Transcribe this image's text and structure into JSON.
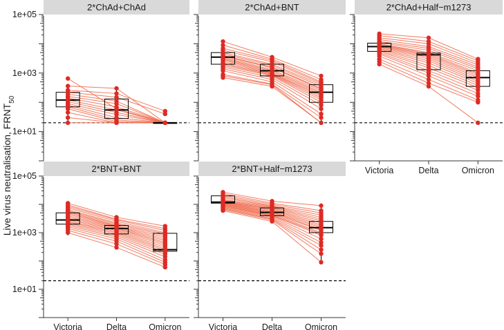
{
  "page": {
    "ylabel": "Live virus neutralisation, FRNT",
    "ylabel_sub": "50"
  },
  "colors": {
    "point": "#dd2b25",
    "line": "#ef6b4e",
    "strip_bg": "#d9d9d9",
    "box": "#000000"
  },
  "chart_data": [
    {
      "type": "box-strip-paired",
      "title": "2*ChAd+ChAd",
      "categories": [
        "Victoria",
        "Delta",
        "Omicron"
      ],
      "xlabel": "",
      "ylabel": "Live virus neutralisation, FRNT50",
      "yscale": "log10",
      "ylim": [
        1,
        100000
      ],
      "y_ticks": [
        "1e+01",
        "1e+03",
        "1e+05"
      ],
      "threshold": 20,
      "box": [
        {
          "q1": 70,
          "median": 120,
          "q3": 220,
          "whisker_low": 20,
          "whisker_high": 360
        },
        {
          "q1": 28,
          "median": 55,
          "q3": 130,
          "whisker_low": 20,
          "whisker_high": 300
        },
        {
          "q1": 20,
          "median": 20,
          "q3": 20,
          "whisker_low": 20,
          "whisker_high": 20
        }
      ],
      "subjects": [
        [
          650,
          60,
          20
        ],
        [
          360,
          300,
          20
        ],
        [
          260,
          200,
          50
        ],
        [
          220,
          150,
          40
        ],
        [
          190,
          110,
          20
        ],
        [
          160,
          90,
          20
        ],
        [
          140,
          70,
          20
        ],
        [
          120,
          55,
          20
        ],
        [
          105,
          45,
          20
        ],
        [
          90,
          38,
          20
        ],
        [
          80,
          30,
          20
        ],
        [
          70,
          25,
          20
        ],
        [
          60,
          22,
          20
        ],
        [
          45,
          20,
          20
        ],
        [
          30,
          20,
          20
        ],
        [
          20,
          20,
          20
        ]
      ]
    },
    {
      "type": "box-strip-paired",
      "title": "2*ChAd+BNT",
      "categories": [
        "Victoria",
        "Delta",
        "Omicron"
      ],
      "yscale": "log10",
      "ylim": [
        1,
        100000
      ],
      "y_ticks": [],
      "threshold": 20,
      "box": [
        {
          "q1": 2000,
          "median": 3500,
          "q3": 5000,
          "whisker_low": 800,
          "whisker_high": 11000
        },
        {
          "q1": 800,
          "median": 1200,
          "q3": 2000,
          "whisker_low": 400,
          "whisker_high": 3500
        },
        {
          "q1": 100,
          "median": 220,
          "q3": 400,
          "whisker_low": 20,
          "whisker_high": 800
        }
      ],
      "subjects": [
        [
          12000,
          3500,
          800
        ],
        [
          9000,
          3000,
          600
        ],
        [
          7000,
          2700,
          500
        ],
        [
          6000,
          2400,
          450
        ],
        [
          5000,
          2000,
          400
        ],
        [
          4500,
          1800,
          350
        ],
        [
          4000,
          1600,
          300
        ],
        [
          3800,
          1500,
          280
        ],
        [
          3500,
          1300,
          250
        ],
        [
          3200,
          1200,
          220
        ],
        [
          3000,
          1100,
          200
        ],
        [
          2800,
          1000,
          180
        ],
        [
          2500,
          950,
          160
        ],
        [
          2200,
          900,
          140
        ],
        [
          2000,
          850,
          120
        ],
        [
          1800,
          800,
          100
        ],
        [
          1600,
          700,
          80
        ],
        [
          1400,
          600,
          60
        ],
        [
          1200,
          500,
          40
        ],
        [
          900,
          420,
          30
        ],
        [
          800,
          400,
          20
        ],
        [
          700,
          350,
          20
        ]
      ]
    },
    {
      "type": "box-strip-paired",
      "title": "2*ChAd+Half−m1273",
      "categories": [
        "Victoria",
        "Delta",
        "Omicron"
      ],
      "yscale": "log10",
      "ylim": [
        1,
        100000
      ],
      "y_ticks": [],
      "threshold": 20,
      "box": [
        {
          "q1": 5500,
          "median": 8000,
          "q3": 10500,
          "whisker_low": 2000,
          "whisker_high": 19000
        },
        {
          "q1": 1300,
          "median": 4200,
          "q3": 4800,
          "whisker_low": 350,
          "whisker_high": 16000
        },
        {
          "q1": 350,
          "median": 700,
          "q3": 1200,
          "whisker_low": 100,
          "whisker_high": 3000
        }
      ],
      "subjects": [
        [
          22000,
          16000,
          3000
        ],
        [
          19000,
          12000,
          2600
        ],
        [
          16000,
          10000,
          2200
        ],
        [
          14000,
          8000,
          1900
        ],
        [
          12000,
          7000,
          1600
        ],
        [
          11000,
          6000,
          1400
        ],
        [
          10000,
          5000,
          1200
        ],
        [
          9500,
          4600,
          1000
        ],
        [
          9000,
          4200,
          900
        ],
        [
          8500,
          3800,
          800
        ],
        [
          8000,
          3400,
          700
        ],
        [
          7500,
          3000,
          600
        ],
        [
          7000,
          2600,
          520
        ],
        [
          6500,
          2200,
          450
        ],
        [
          6000,
          1800,
          380
        ],
        [
          5500,
          1500,
          320
        ],
        [
          5000,
          1200,
          260
        ],
        [
          4500,
          1000,
          200
        ],
        [
          3800,
          800,
          160
        ],
        [
          3000,
          600,
          120
        ],
        [
          2500,
          450,
          100
        ],
        [
          2000,
          350,
          20
        ]
      ]
    },
    {
      "type": "box-strip-paired",
      "title": "2*BNT+BNT",
      "categories": [
        "Victoria",
        "Delta",
        "Omicron"
      ],
      "yscale": "log10",
      "ylim": [
        1,
        100000
      ],
      "y_ticks": [
        "1e+01",
        "1e+03",
        "1e+05"
      ],
      "threshold": 20,
      "box": [
        {
          "q1": 2000,
          "median": 2800,
          "q3": 5000,
          "whisker_low": 800,
          "whisker_high": 10000
        },
        {
          "q1": 900,
          "median": 1400,
          "q3": 1800,
          "whisker_low": 300,
          "whisker_high": 3500
        },
        {
          "q1": 220,
          "median": 250,
          "q3": 950,
          "whisker_low": 60,
          "whisker_high": 1700
        }
      ],
      "subjects": [
        [
          11000,
          3500,
          1700
        ],
        [
          9500,
          3000,
          1400
        ],
        [
          8500,
          2800,
          1200
        ],
        [
          7500,
          2500,
          1000
        ],
        [
          6500,
          2200,
          900
        ],
        [
          6000,
          2000,
          800
        ],
        [
          5500,
          1800,
          700
        ],
        [
          5000,
          1700,
          600
        ],
        [
          4500,
          1600,
          520
        ],
        [
          4000,
          1500,
          450
        ],
        [
          3600,
          1400,
          400
        ],
        [
          3200,
          1300,
          350
        ],
        [
          2900,
          1200,
          300
        ],
        [
          2600,
          1100,
          260
        ],
        [
          2400,
          1000,
          230
        ],
        [
          2200,
          900,
          200
        ],
        [
          2000,
          800,
          170
        ],
        [
          1800,
          700,
          140
        ],
        [
          1600,
          600,
          110
        ],
        [
          1400,
          500,
          90
        ],
        [
          1200,
          400,
          75
        ],
        [
          1000,
          300,
          60
        ]
      ]
    },
    {
      "type": "box-strip-paired",
      "title": "2*BNT+Half−m1273",
      "categories": [
        "Victoria",
        "Delta",
        "Omicron"
      ],
      "yscale": "log10",
      "ylim": [
        1,
        100000
      ],
      "y_ticks": [],
      "threshold": 20,
      "box": [
        {
          "q1": 11000,
          "median": 12000,
          "q3": 20000,
          "whisker_low": 6000,
          "whisker_high": 27000
        },
        {
          "q1": 4000,
          "median": 5200,
          "q3": 7500,
          "whisker_low": 2500,
          "whisker_high": 13000
        },
        {
          "q1": 1000,
          "median": 1500,
          "q3": 2500,
          "whisker_low": 90,
          "whisker_high": 9000
        }
      ],
      "subjects": [
        [
          27000,
          13000,
          9000
        ],
        [
          24000,
          11000,
          6000
        ],
        [
          21000,
          10000,
          5000
        ],
        [
          19000,
          9000,
          4200
        ],
        [
          17000,
          8500,
          3500
        ],
        [
          15000,
          8000,
          3000
        ],
        [
          14000,
          7500,
          2600
        ],
        [
          13000,
          7000,
          2200
        ],
        [
          12500,
          6500,
          1900
        ],
        [
          12000,
          6000,
          1700
        ],
        [
          11500,
          5500,
          1500
        ],
        [
          11000,
          5200,
          1300
        ],
        [
          10500,
          4800,
          1200
        ],
        [
          10000,
          4500,
          1000
        ],
        [
          9500,
          4200,
          900
        ],
        [
          9000,
          4000,
          800
        ],
        [
          8500,
          3800,
          600
        ],
        [
          8000,
          3500,
          450
        ],
        [
          7500,
          3200,
          350
        ],
        [
          7000,
          3000,
          250
        ],
        [
          6500,
          2800,
          180
        ],
        [
          6000,
          2500,
          90
        ]
      ]
    }
  ]
}
